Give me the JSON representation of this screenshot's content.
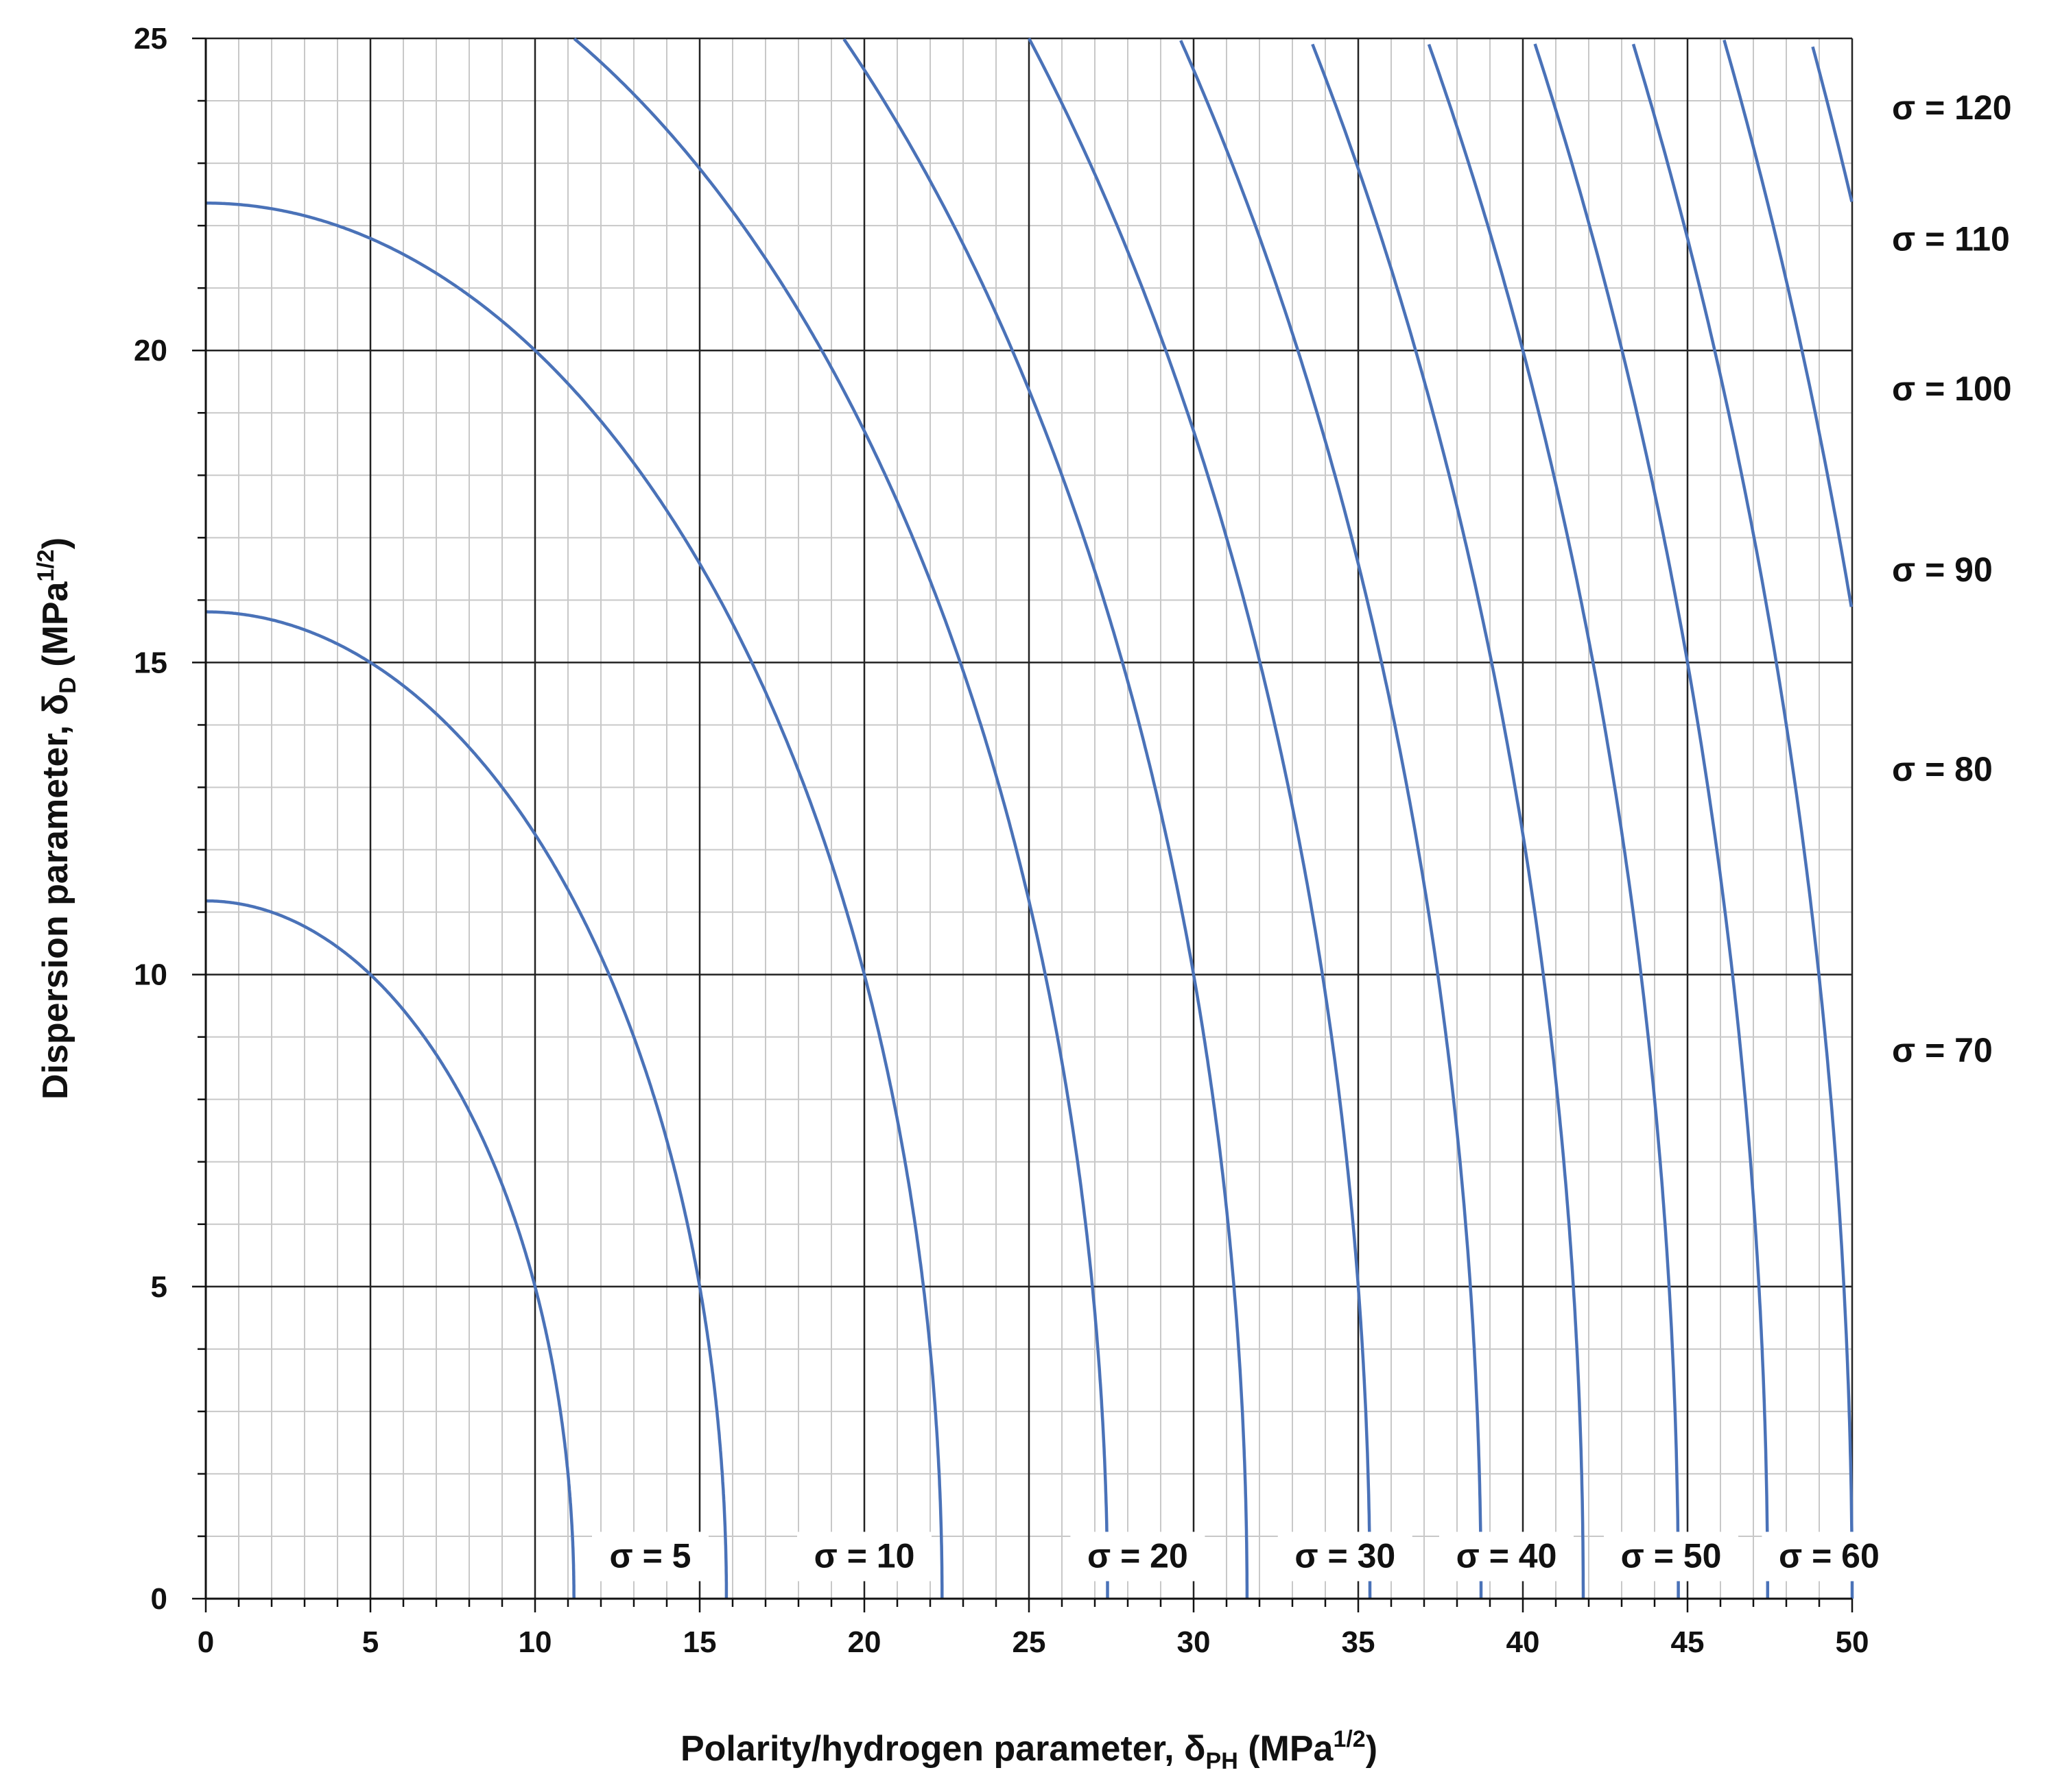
{
  "chart_data": {
    "type": "line",
    "title": "",
    "xlabel": {
      "base": "Polarity/hydrogen parameter, δ",
      "subscript": "PH",
      "unit_prefix": " (MPa",
      "unit_superscript": "1/2",
      "unit_suffix": ")"
    },
    "ylabel": {
      "base": "Dispersion parameter, δ",
      "subscript": "D",
      "unit_prefix": " (MPa",
      "unit_superscript": "1/2",
      "unit_suffix": ")"
    },
    "xlim": [
      0,
      50
    ],
    "ylim": [
      0,
      25
    ],
    "x_major_ticks": [
      "0",
      "5",
      "10",
      "15",
      "20",
      "25",
      "30",
      "35",
      "40",
      "45",
      "50"
    ],
    "y_major_ticks": [
      "0",
      "5",
      "10",
      "15",
      "20",
      "25"
    ],
    "minor_grid_step": 1,
    "grid": true,
    "line_color": "#4a72b8",
    "curve_equation": "sigma = dPH^2 + dD^2",
    "sigma_values": [
      5,
      10,
      20,
      30,
      40,
      50,
      60,
      70,
      80,
      90,
      100,
      110,
      120
    ],
    "note": "",
    "bottom_labels": [
      {
        "text": "σ = 5",
        "x": 13.5
      },
      {
        "text": "σ = 10",
        "x": 20
      },
      {
        "text": "σ = 20",
        "x": 28.3
      },
      {
        "text": "σ = 30",
        "x": 34.6
      },
      {
        "text": "σ = 40",
        "x": 39.5
      },
      {
        "text": "σ = 50",
        "x": 44.5
      },
      {
        "text": "σ = 60",
        "x": 49.3
      }
    ],
    "right_labels": [
      {
        "text": "σ = 120",
        "y": 23.9
      },
      {
        "text": "σ = 110",
        "y": 21.8
      },
      {
        "text": "σ = 100",
        "y": 19.4
      },
      {
        "text": "σ = 90",
        "y": 16.5
      },
      {
        "text": "σ = 80",
        "y": 13.3
      },
      {
        "text": "σ = 70",
        "y": 8.8
      }
    ]
  }
}
